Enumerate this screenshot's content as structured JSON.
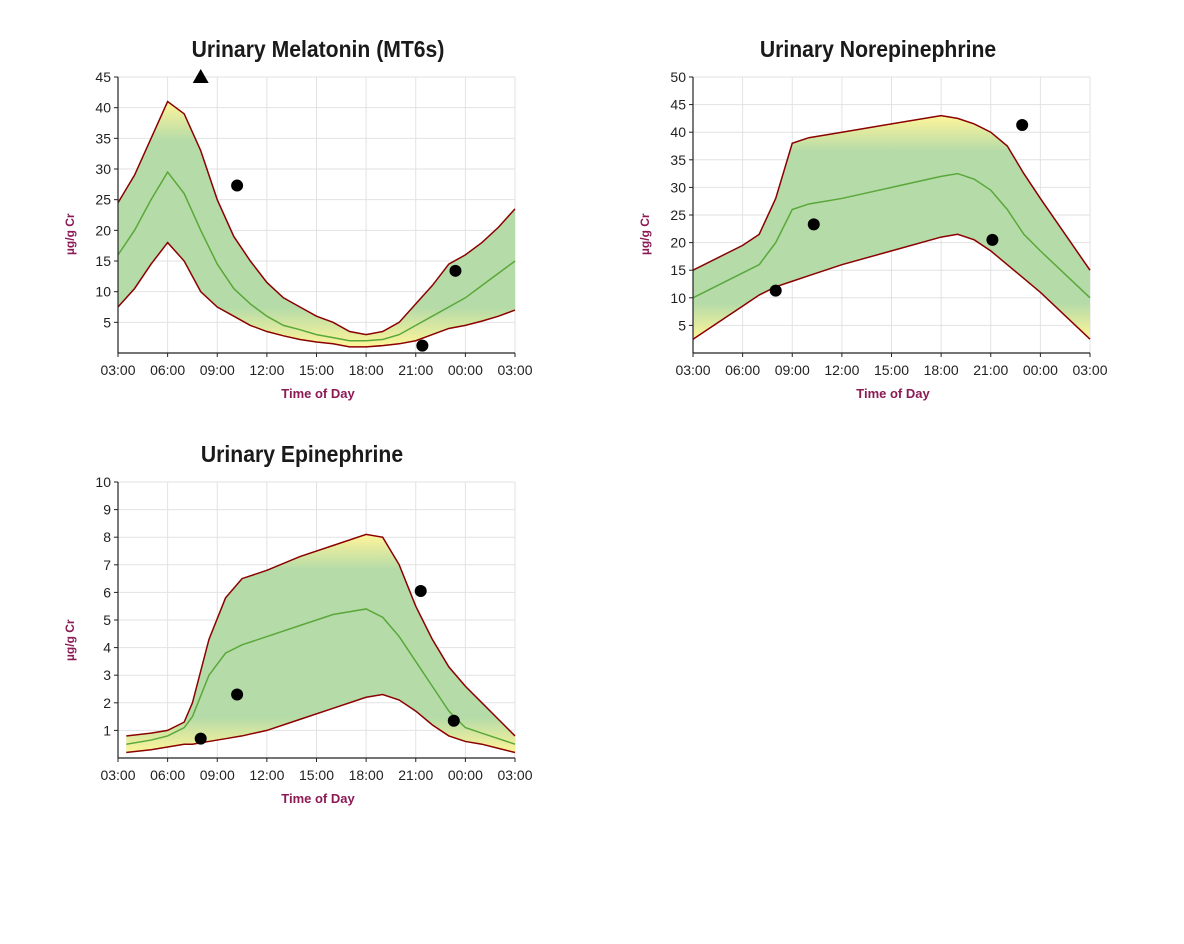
{
  "colors": {
    "band_edge": "#8b0000",
    "median": "#5aa83a",
    "band_center": "#b5dba8",
    "band_outer": "#fff59a",
    "point": "#000000",
    "axis_label": "#8b1a55",
    "grid": "#e2e2e2"
  },
  "chart_data": [
    {
      "type": "line",
      "title": "Urinary Melatonin (MT6s)",
      "xlabel": "Time of Day",
      "ylabel": "µg/g Cr",
      "x_ticks": [
        "03:00",
        "06:00",
        "09:00",
        "12:00",
        "15:00",
        "18:00",
        "21:00",
        "00:00",
        "03:00"
      ],
      "y_ticks": [
        5,
        10,
        15,
        20,
        25,
        30,
        35,
        40,
        45
      ],
      "ylim": [
        0,
        45
      ],
      "x": [
        3,
        4,
        5,
        6,
        7,
        8,
        9,
        10,
        11,
        12,
        13,
        14,
        15,
        16,
        17,
        18,
        19,
        20,
        21,
        22,
        23,
        24,
        25,
        26,
        27
      ],
      "upper": [
        24.5,
        29,
        35,
        41,
        39,
        33,
        25,
        19,
        15,
        11.5,
        9,
        7.5,
        6,
        5,
        3.5,
        3,
        3.5,
        5,
        8,
        11,
        14.5,
        16,
        18,
        20.5,
        23.5
      ],
      "median": [
        16,
        20,
        25,
        29.5,
        26,
        20,
        14.5,
        10.5,
        8,
        6,
        4.5,
        3.8,
        3,
        2.5,
        2,
        2,
        2.2,
        3,
        4.5,
        6,
        7.5,
        9,
        11,
        13,
        15
      ],
      "lower": [
        7.5,
        10.5,
        14.5,
        18,
        15,
        10,
        7.5,
        6,
        4.5,
        3.5,
        2.8,
        2.2,
        1.8,
        1.5,
        1,
        1,
        1.2,
        1.5,
        2,
        3,
        4,
        4.5,
        5.2,
        6,
        7
      ],
      "points": [
        {
          "x": 10.2,
          "y": 27.3,
          "shape": "circle"
        },
        {
          "x": 21.4,
          "y": 1.2,
          "shape": "circle"
        },
        {
          "x": 23.4,
          "y": 13.4,
          "shape": "circle"
        },
        {
          "x": 8.0,
          "y": 45,
          "shape": "triangle"
        }
      ],
      "grid": true
    },
    {
      "type": "line",
      "title": "Urinary Norepinephrine",
      "xlabel": "Time of Day",
      "ylabel": "µg/g Cr",
      "x_ticks": [
        "03:00",
        "06:00",
        "09:00",
        "12:00",
        "15:00",
        "18:00",
        "21:00",
        "00:00",
        "03:00"
      ],
      "y_ticks": [
        5,
        10,
        15,
        20,
        25,
        30,
        35,
        40,
        45,
        50
      ],
      "ylim": [
        0,
        50
      ],
      "x": [
        3,
        6,
        7,
        8,
        9,
        10,
        11,
        12,
        15,
        18,
        19,
        20,
        21,
        22,
        23,
        24,
        27
      ],
      "upper": [
        15,
        19.5,
        21.5,
        28,
        38,
        39,
        39.5,
        40,
        41.5,
        43,
        42.5,
        41.5,
        40,
        37.5,
        32.5,
        28,
        15
      ],
      "median": [
        10,
        14.5,
        16,
        20,
        26,
        27,
        27.5,
        28,
        30,
        32,
        32.5,
        31.5,
        29.5,
        26,
        21.5,
        18.5,
        10
      ],
      "lower": [
        2.5,
        8.5,
        10.5,
        12,
        13,
        14,
        15,
        16,
        18.5,
        21,
        21.5,
        20.5,
        18.5,
        16,
        13.5,
        11,
        2.5
      ],
      "points": [
        {
          "x": 8.0,
          "y": 11.3,
          "shape": "circle"
        },
        {
          "x": 10.3,
          "y": 23.3,
          "shape": "circle"
        },
        {
          "x": 21.1,
          "y": 20.5,
          "shape": "circle"
        },
        {
          "x": 22.9,
          "y": 41.3,
          "shape": "circle"
        }
      ],
      "grid": true
    },
    {
      "type": "line",
      "title": "Urinary Epinephrine",
      "xlabel": "Time of Day",
      "ylabel": "µg/g Cr",
      "x_ticks": [
        "03:00",
        "06:00",
        "09:00",
        "12:00",
        "15:00",
        "18:00",
        "21:00",
        "00:00",
        "03:00"
      ],
      "y_ticks": [
        1,
        2,
        3,
        4,
        5,
        6,
        7,
        8,
        9,
        10
      ],
      "ylim": [
        0,
        10
      ],
      "x": [
        3.5,
        5,
        6,
        7,
        7.5,
        8.5,
        9.5,
        10.5,
        12,
        14,
        16,
        18,
        19,
        20,
        21,
        22,
        23,
        24,
        25,
        26,
        27
      ],
      "upper": [
        0.8,
        0.9,
        1,
        1.3,
        2,
        4.3,
        5.8,
        6.5,
        6.8,
        7.3,
        7.7,
        8.1,
        8.0,
        7.0,
        5.5,
        4.3,
        3.3,
        2.6,
        2,
        1.4,
        0.8
      ],
      "median": [
        0.5,
        0.65,
        0.8,
        1.1,
        1.5,
        3,
        3.8,
        4.1,
        4.4,
        4.8,
        5.2,
        5.4,
        5.1,
        4.4,
        3.5,
        2.6,
        1.7,
        1.1,
        0.9,
        0.7,
        0.5
      ],
      "lower": [
        0.2,
        0.3,
        0.4,
        0.5,
        0.5,
        0.6,
        0.7,
        0.8,
        1.0,
        1.4,
        1.8,
        2.2,
        2.3,
        2.1,
        1.7,
        1.2,
        0.8,
        0.6,
        0.5,
        0.35,
        0.2
      ],
      "points": [
        {
          "x": 8.0,
          "y": 0.7,
          "shape": "circle"
        },
        {
          "x": 10.2,
          "y": 2.3,
          "shape": "circle"
        },
        {
          "x": 21.3,
          "y": 6.05,
          "shape": "circle"
        },
        {
          "x": 23.3,
          "y": 1.35,
          "shape": "circle"
        }
      ],
      "grid": true
    }
  ]
}
